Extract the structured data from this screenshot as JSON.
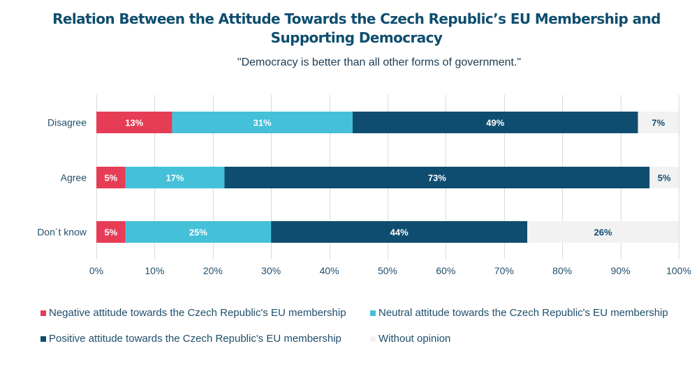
{
  "chart_data": {
    "type": "bar",
    "orientation": "horizontal",
    "stacked": true,
    "title": "Relation Between the Attitude Towards the Czech Republic’s EU Membership and Supporting Democracy",
    "title_lines": [
      "Relation Between the Attitude Towards the Czech Republic’s EU Membership and",
      "Supporting Democracy"
    ],
    "subtitle": "\"Democracy is better than all other forms of government.\"",
    "xlabel": "",
    "ylabel": "",
    "xlim": [
      0,
      100
    ],
    "x_ticks": [
      "0%",
      "10%",
      "20%",
      "30%",
      "40%",
      "50%",
      "60%",
      "70%",
      "80%",
      "90%",
      "100%"
    ],
    "x_tick_values": [
      0,
      10,
      20,
      30,
      40,
      50,
      60,
      70,
      80,
      90,
      100
    ],
    "grid": "vertical",
    "categories": [
      "Disagree",
      "Agree",
      "Don´t know"
    ],
    "series": [
      {
        "name": "Negative attitude towards the Czech Republic's EU membership",
        "color": "#e63c55",
        "label_color": "#ffffff",
        "values": [
          13,
          5,
          5
        ]
      },
      {
        "name": "Neutral attitude towards the Czech Republic's EU membership",
        "color": "#44c0d8",
        "label_color": "#ffffff",
        "values": [
          31,
          17,
          25
        ]
      },
      {
        "name": "Positive attitude towards the Czech Republic's EU membership",
        "color": "#0e4d6f",
        "label_color": "#ffffff",
        "values": [
          49,
          73,
          44
        ]
      },
      {
        "name": "Without opinion",
        "color": "#f2f2f2",
        "label_color": "#0e4d6f",
        "values": [
          7,
          5,
          26
        ]
      }
    ],
    "value_suffix": "%",
    "legend_position": "bottom",
    "legend_order": [
      0,
      1,
      2,
      3
    ]
  }
}
